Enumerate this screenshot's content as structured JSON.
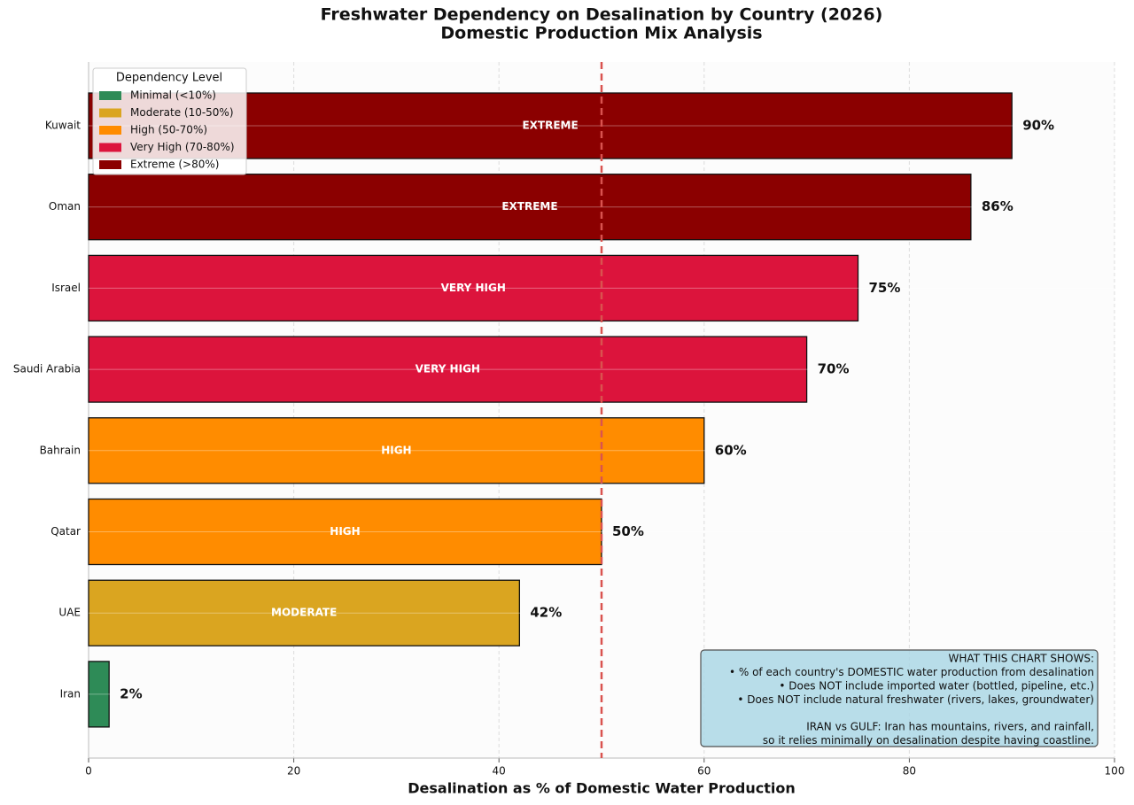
{
  "chart_data": {
    "type": "bar",
    "orientation": "horizontal",
    "title": "Freshwater Dependency on Desalination by Country (2026)",
    "subtitle": "Domestic Production Mix Analysis",
    "xlabel": "Desalination as % of Domestic Water Production",
    "categories": [
      "Kuwait",
      "Oman",
      "Israel",
      "Saudi Arabia",
      "Bahrain",
      "Qatar",
      "UAE",
      "Iran"
    ],
    "values": [
      90,
      86,
      75,
      70,
      60,
      50,
      42,
      2
    ],
    "value_labels": [
      "90%",
      "86%",
      "75%",
      "70%",
      "60%",
      "50%",
      "42%",
      "2%"
    ],
    "bar_labels": [
      "EXTREME",
      "EXTREME",
      "VERY HIGH",
      "VERY HIGH",
      "HIGH",
      "HIGH",
      "MODERATE",
      null
    ],
    "colors": [
      "#8b0000",
      "#8b0000",
      "#dc143c",
      "#dc143c",
      "#ff8c00",
      "#ff8c00",
      "#daa520",
      "#2e8b57"
    ],
    "xlim": [
      0,
      100
    ],
    "xticks": [
      0,
      20,
      40,
      60,
      80,
      100
    ],
    "grid": true,
    "reference_line": {
      "value": 50,
      "color": "#d9534f"
    },
    "legend": {
      "title": "Dependency Level",
      "position": "upper left",
      "items": [
        {
          "label": "Minimal (<10%)",
          "color": "#2e8b57"
        },
        {
          "label": "Moderate (10-50%)",
          "color": "#daa520"
        },
        {
          "label": "High (50-70%)",
          "color": "#ff8c00"
        },
        {
          "label": "Very High (70-80%)",
          "color": "#dc143c"
        },
        {
          "label": "Extreme (>80%)",
          "color": "#8b0000"
        }
      ]
    },
    "annotation": [
      "WHAT THIS CHART SHOWS:",
      "• % of each country's DOMESTIC water production from desalination",
      "• Does NOT include imported water (bottled, pipeline, etc.)",
      "• Does NOT include natural freshwater (rivers, lakes, groundwater)",
      "IRAN vs GULF: Iran has mountains, rivers, and rainfall,",
      "so it relies minimally on desalination despite having coastline."
    ]
  }
}
